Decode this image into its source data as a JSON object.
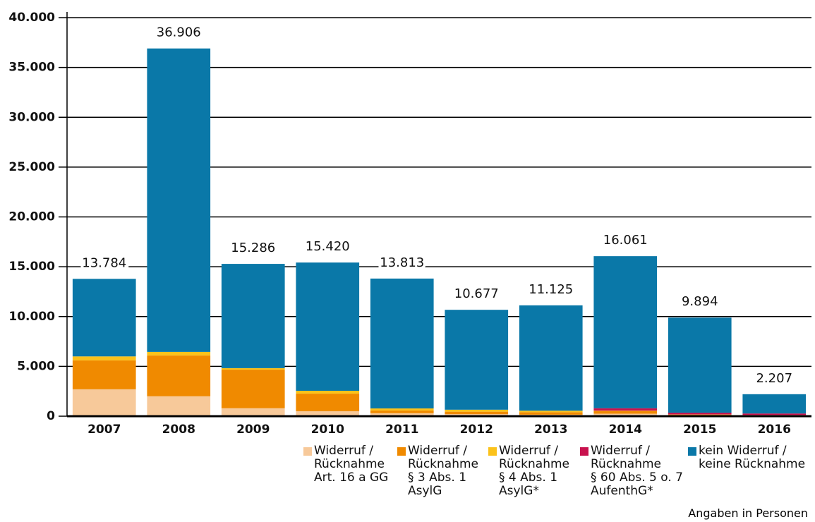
{
  "chart_data": {
    "type": "stacked_bar",
    "categories": [
      "2007",
      "2008",
      "2009",
      "2010",
      "2011",
      "2012",
      "2013",
      "2014",
      "2015",
      "2016"
    ],
    "series": [
      {
        "name": "Widerruf /\nRücknahme\nArt. 16 a GG",
        "color": "#f7c99a",
        "values": [
          2700,
          2000,
          800,
          500,
          300,
          200,
          150,
          250,
          50,
          30
        ]
      },
      {
        "name": "Widerruf /\nRücknahme\n§ 3 Abs. 1\nAsylG",
        "color": "#f08a00",
        "values": [
          2900,
          4100,
          3870,
          1760,
          270,
          250,
          250,
          250,
          100,
          80
        ]
      },
      {
        "name": "Widerruf /\nRücknahme\n§ 4 Abs. 1\nAsylG*",
        "color": "#fbc21b",
        "values": [
          400,
          350,
          150,
          290,
          210,
          200,
          150,
          50,
          20,
          10
        ]
      },
      {
        "name": "Widerruf /\nRücknahme\n§ 60 Abs. 5 o. 7\nAufenthG*",
        "color": "#c8124e",
        "values": [
          0,
          0,
          0,
          0,
          0,
          0,
          0,
          250,
          180,
          150
        ]
      },
      {
        "name": "kein Widerruf /\nkeine Rücknahme",
        "color": "#0a78a8",
        "values": [
          7784,
          30456,
          10466,
          12870,
          13033,
          10027,
          10575,
          15261,
          9544,
          1937
        ]
      }
    ],
    "totals": {
      "values": [
        13784,
        36906,
        15286,
        15420,
        13813,
        10677,
        11125,
        16061,
        9894,
        2207
      ],
      "value_labels": [
        "13.784",
        "36.906",
        "15.286",
        "15.420",
        "13.813",
        "10.677",
        "11.125",
        "16.061",
        "9.894",
        "2.207"
      ]
    },
    "ylim": [
      0,
      40000
    ],
    "yticks": [
      0,
      {
        "value": 5000,
        "label": "5.000"
      },
      {
        "value": 10000,
        "label": "10.000"
      },
      {
        "value": 15000,
        "label": "15.000"
      },
      {
        "value": 20000,
        "label": "20.000"
      },
      {
        "value": 25000,
        "label": "25.000"
      },
      {
        "value": 30000,
        "label": "30.000"
      },
      {
        "value": 35000,
        "label": "35.000"
      },
      {
        "value": 40000,
        "label": "40.000"
      }
    ],
    "grid": true,
    "note": "Angaben in Personen"
  }
}
